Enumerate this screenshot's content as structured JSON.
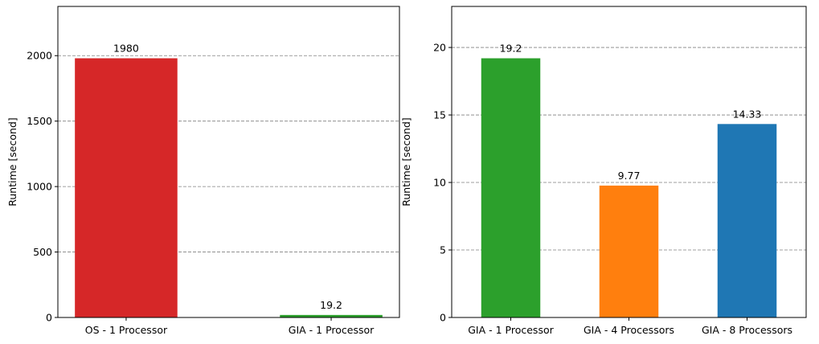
{
  "chart_data": [
    {
      "type": "bar",
      "ylabel": "Runtime [second]",
      "categories": [
        "OS - 1 Processor",
        "GIA - 1 Processor"
      ],
      "values": [
        1980,
        19.2
      ],
      "colors": [
        "#d62728",
        "#2ca02c"
      ],
      "ylim": [
        0,
        2376
      ],
      "yticks": [
        0,
        500,
        1000,
        1500,
        2000
      ],
      "grid": true
    },
    {
      "type": "bar",
      "ylabel": "Runtime [second]",
      "categories": [
        "GIA - 1 Processor",
        "GIA - 4 Processors",
        "GIA - 8 Processors"
      ],
      "values": [
        19.2,
        9.77,
        14.33
      ],
      "colors": [
        "#2ca02c",
        "#ff7f0e",
        "#1f77b4"
      ],
      "ylim": [
        0,
        23.04
      ],
      "yticks": [
        0,
        5,
        10,
        15,
        20
      ],
      "grid": true
    }
  ]
}
